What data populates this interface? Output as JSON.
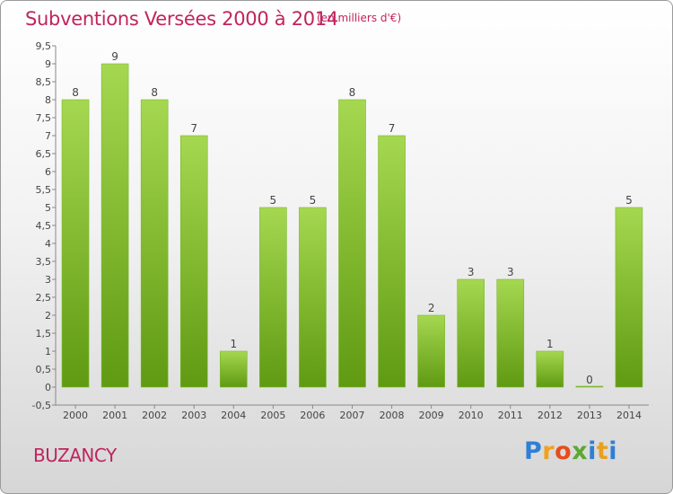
{
  "header": {
    "title": "Subventions Versées 2000 à 2014",
    "subtitle": "(en milliers d'€)"
  },
  "footer": {
    "commune": "BUZANCY",
    "logo_text": "Proxiti"
  },
  "colors": {
    "title": "#c0245c",
    "bar_light": "#a5d850",
    "bar_dark": "#5f9a12",
    "logo": [
      "#2e7fd6",
      "#f0a020",
      "#e84c1c",
      "#5aa832",
      "#2e7fd6",
      "#e8a020",
      "#2e7fd6"
    ]
  },
  "chart_data": {
    "type": "bar",
    "title": "Subventions Versées 2000 à 2014",
    "categories": [
      "2000",
      "2001",
      "2002",
      "2003",
      "2004",
      "2005",
      "2006",
      "2007",
      "2008",
      "2009",
      "2010",
      "2011",
      "2012",
      "2013",
      "2014"
    ],
    "values": [
      8,
      9,
      8,
      7,
      1,
      5,
      5,
      8,
      7,
      2,
      3,
      3,
      1,
      0,
      5
    ],
    "ylim": [
      -0.5,
      9.5
    ],
    "yticks": [
      "-0,5",
      "0",
      "0,5",
      "1",
      "1,5",
      "2",
      "2,5",
      "3",
      "3,5",
      "4",
      "4,5",
      "5",
      "5,5",
      "6",
      "6,5",
      "7",
      "7,5",
      "8",
      "8,5",
      "9",
      "9,5"
    ],
    "grid": false,
    "xlabel": "",
    "ylabel": ""
  }
}
